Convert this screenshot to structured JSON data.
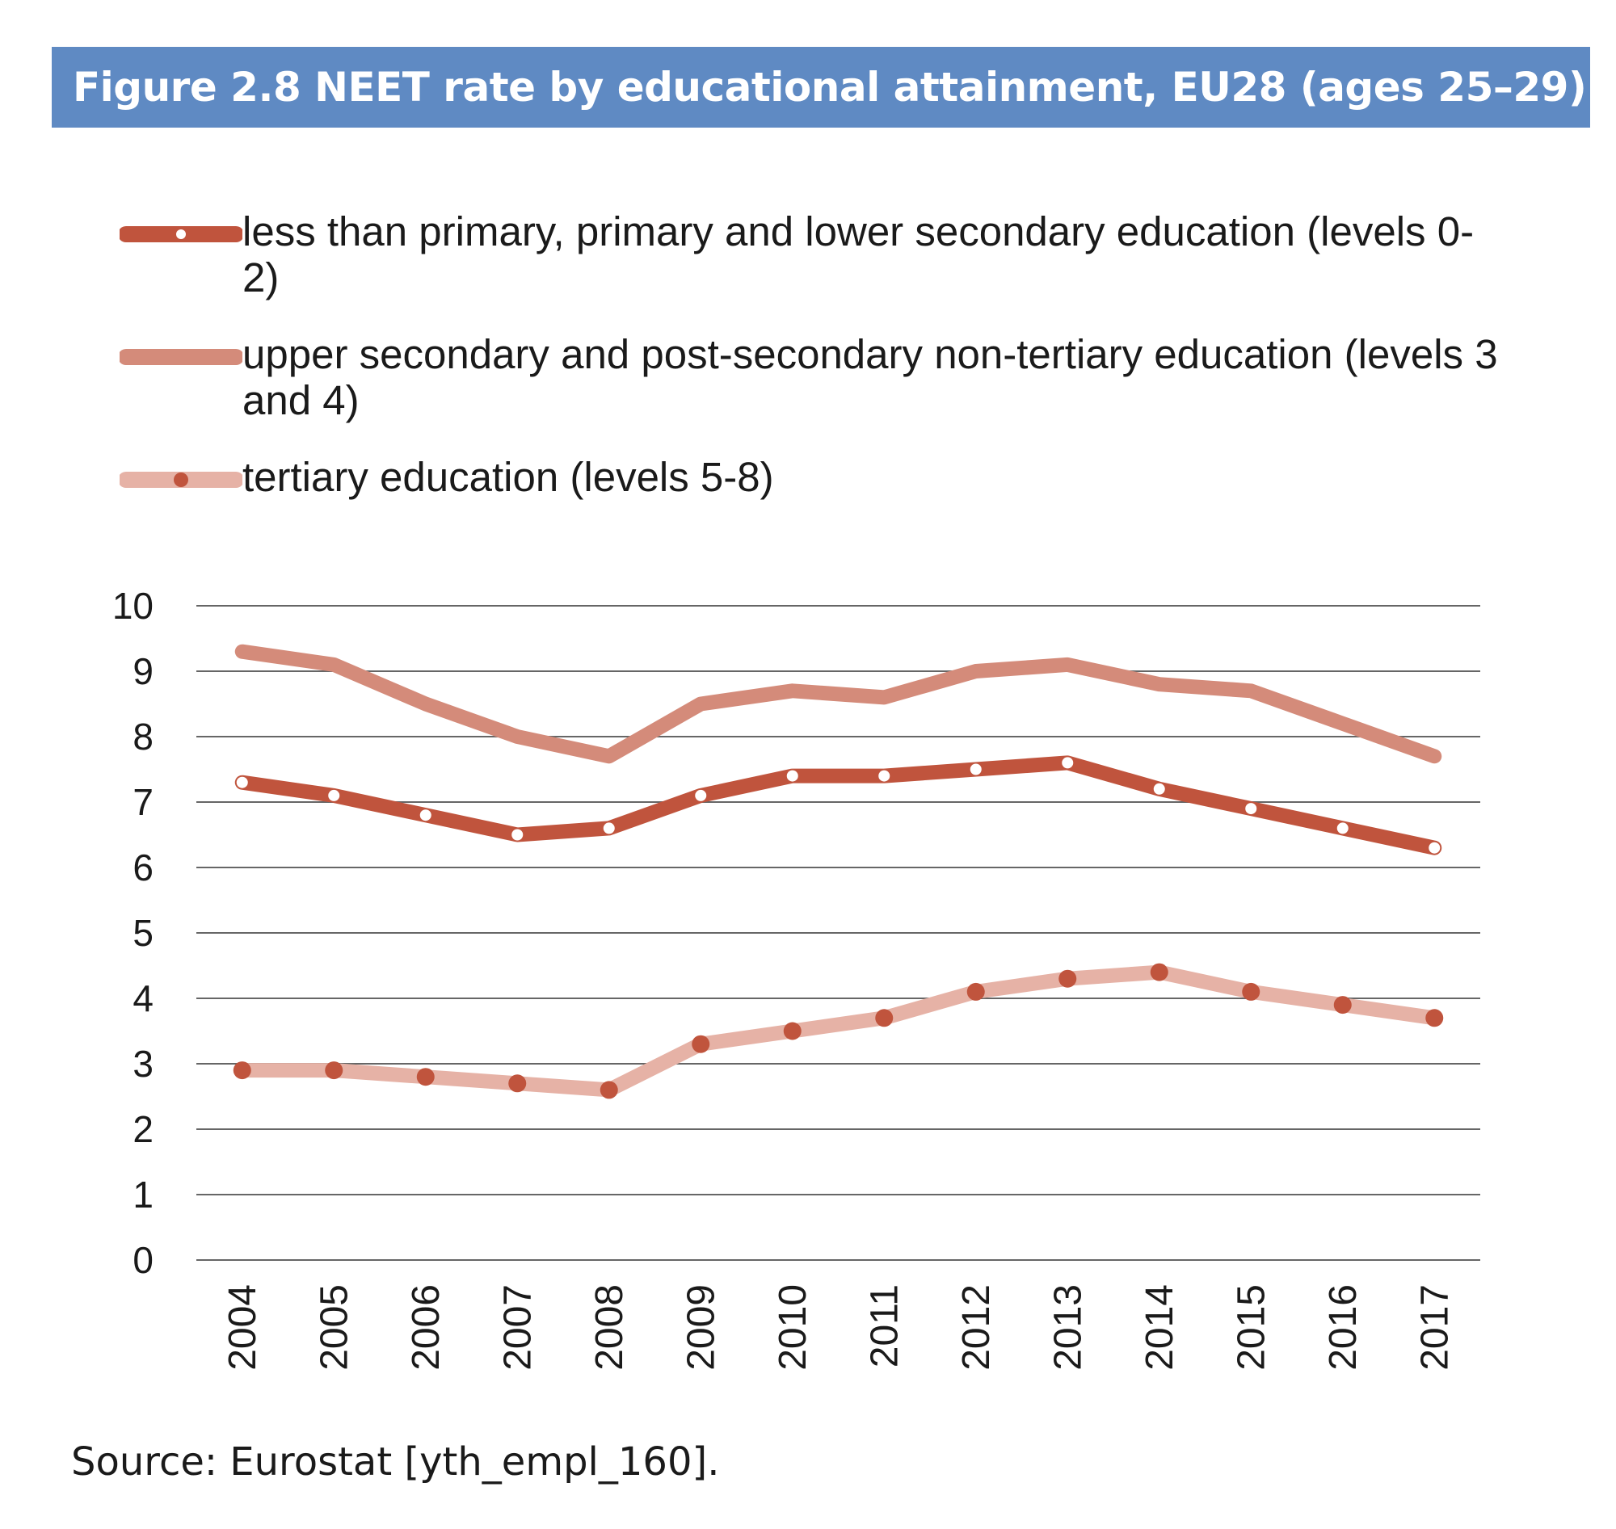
{
  "figure": {
    "title": "Figure 2.8 NEET rate by educational attainment, EU28 (ages 25–29)",
    "source": "Source: Eurostat [yth_empl_160]."
  },
  "colors": {
    "title_bar": "#5f8ac3",
    "series_levels_0_2": "#c0543d",
    "series_levels_3_4": "#d48b7a",
    "series_levels_5_8": "#e6b2a6",
    "marker_dark": "#c0543d",
    "grid": "#666666"
  },
  "chart_data": {
    "type": "line",
    "title": "Figure 2.8 NEET rate by educational attainment, EU28 (ages 25–29)",
    "xlabel": "",
    "ylabel": "",
    "ylim": [
      0,
      10
    ],
    "yticks": [
      0,
      1,
      2,
      3,
      4,
      5,
      6,
      7,
      8,
      9,
      10
    ],
    "grid": true,
    "legend_position": "top",
    "categories": [
      "2004",
      "2005",
      "2006",
      "2007",
      "2008",
      "2009",
      "2010",
      "2011",
      "2012",
      "2013",
      "2014",
      "2015",
      "2016",
      "2017"
    ],
    "series": [
      {
        "name": "less than primary, primary and lower secondary education (levels 0-2)",
        "values": [
          7.3,
          7.1,
          6.8,
          6.5,
          6.6,
          7.1,
          7.4,
          7.4,
          7.5,
          7.6,
          7.2,
          6.9,
          6.6,
          6.3
        ],
        "color": "#c0543d",
        "marker": "white-dot"
      },
      {
        "name": "upper secondary and post-secondary non-tertiary education (levels 3 and 4)",
        "values": [
          9.3,
          9.1,
          8.5,
          8.0,
          7.7,
          8.5,
          8.7,
          8.6,
          9.0,
          9.1,
          8.8,
          8.7,
          8.2,
          7.7
        ],
        "color": "#d48b7a",
        "marker": "none"
      },
      {
        "name": "tertiary education (levels 5-8)",
        "values": [
          2.9,
          2.9,
          2.8,
          2.7,
          2.6,
          3.3,
          3.5,
          3.7,
          4.1,
          4.3,
          4.4,
          4.1,
          3.9,
          3.7
        ],
        "color": "#e6b2a6",
        "marker": "dark-dot"
      }
    ]
  }
}
